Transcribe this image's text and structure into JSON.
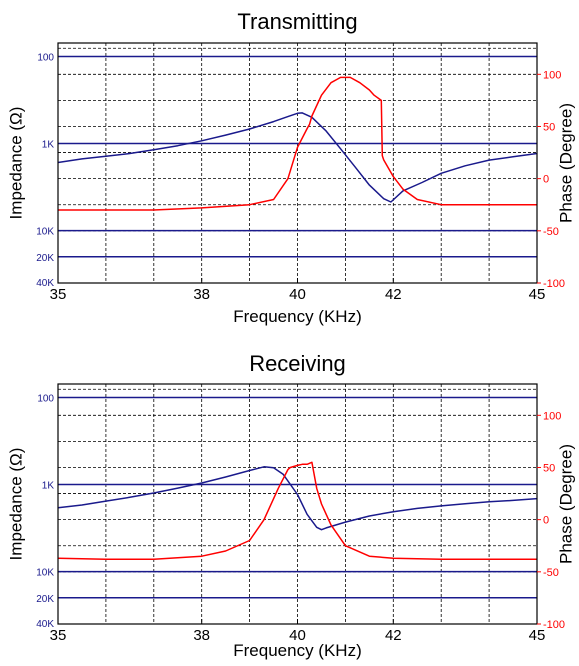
{
  "colors": {
    "impedance": "#1a1a8c",
    "phase": "#ff0000",
    "axis": "#000000",
    "grid": "#000000"
  },
  "chart_data": [
    {
      "type": "line",
      "title": "Transmitting",
      "xlabel": "Frequency (KHz)",
      "ylabel_left": "Impedance (Ω)",
      "ylabel_right": "Phase (Degree)",
      "xlim": [
        35,
        45
      ],
      "x_ticks": [
        35,
        38,
        40,
        42,
        45
      ],
      "x_tick_labels": [
        "35",
        "38",
        "40",
        "42",
        "45"
      ],
      "left_ticks": [
        {
          "label": "100",
          "value": 100
        },
        {
          "label": "1K",
          "value": 1000
        },
        {
          "label": "10K",
          "value": 10000
        },
        {
          "label": "20K",
          "value": 20000
        },
        {
          "label": "40K",
          "value": 40000
        }
      ],
      "left_axis_scale": "log-inverted",
      "ylim_left": [
        70,
        40000
      ],
      "ylim_right": [
        -100,
        130
      ],
      "right_ticks": [
        {
          "label": "100",
          "value": 100
        },
        {
          "label": "50",
          "value": 50
        },
        {
          "label": "0",
          "value": 0
        },
        {
          "label": "-50",
          "value": -50
        },
        {
          "label": "-100",
          "value": -100
        }
      ],
      "grid": true,
      "series": [
        {
          "key": "impedance",
          "axis": "left",
          "x": [
            35,
            35.5,
            36,
            36.5,
            37,
            37.5,
            38,
            38.5,
            39,
            39.5,
            39.8,
            40,
            40.1,
            40.3,
            40.6,
            40.9,
            41.2,
            41.5,
            41.8,
            41.95,
            42.2,
            42.6,
            43,
            43.5,
            44,
            44.5,
            45
          ],
          "y": [
            1650,
            1500,
            1400,
            1300,
            1180,
            1060,
            930,
            800,
            680,
            560,
            490,
            450,
            445,
            500,
            720,
            1150,
            1850,
            3000,
            4300,
            4700,
            3500,
            2800,
            2200,
            1800,
            1550,
            1420,
            1300
          ]
        },
        {
          "key": "phase",
          "axis": "right",
          "x": [
            35,
            36,
            37,
            38,
            39,
            39.5,
            39.8,
            40,
            40.2,
            40.25,
            40.3,
            40.5,
            40.7,
            40.9,
            41.1,
            41.3,
            41.5,
            41.6,
            41.75,
            41.77,
            41.8,
            41.9,
            42,
            42.2,
            42.5,
            43,
            44,
            45
          ],
          "y": [
            -30,
            -30,
            -30,
            -28,
            -25,
            -20,
            0,
            30,
            48,
            52,
            60,
            80,
            92,
            97,
            97,
            92,
            85,
            80,
            75,
            22,
            18,
            10,
            2,
            -10,
            -20,
            -25,
            -25,
            -25
          ]
        }
      ]
    },
    {
      "type": "line",
      "title": "Receiving",
      "xlabel": "Frequency (KHz)",
      "ylabel_left": "Impedance (Ω)",
      "ylabel_right": "Phase (Degree)",
      "xlim": [
        35,
        45
      ],
      "x_ticks": [
        35,
        38,
        40,
        42,
        45
      ],
      "x_tick_labels": [
        "35",
        "38",
        "40",
        "42",
        "45"
      ],
      "left_ticks": [
        {
          "label": "100",
          "value": 100
        },
        {
          "label": "1K",
          "value": 1000
        },
        {
          "label": "10K",
          "value": 10000
        },
        {
          "label": "20K",
          "value": 20000
        },
        {
          "label": "40K",
          "value": 40000
        }
      ],
      "left_axis_scale": "log-inverted",
      "ylim_left": [
        70,
        40000
      ],
      "ylim_right": [
        -100,
        130
      ],
      "right_ticks": [
        {
          "label": "100",
          "value": 100
        },
        {
          "label": "50",
          "value": 50
        },
        {
          "label": "0",
          "value": 0
        },
        {
          "label": "-50",
          "value": -50
        },
        {
          "label": "-100",
          "value": -100
        }
      ],
      "grid": true,
      "series": [
        {
          "key": "impedance",
          "axis": "left",
          "x": [
            35,
            35.5,
            36,
            36.5,
            37,
            37.5,
            38,
            38.5,
            39,
            39.3,
            39.5,
            39.7,
            40,
            40.2,
            40.4,
            40.5,
            40.6,
            41,
            41.5,
            42,
            42.5,
            43,
            43.5,
            44,
            44.5,
            45
          ],
          "y": [
            1850,
            1720,
            1550,
            1400,
            1250,
            1100,
            960,
            820,
            690,
            625,
            640,
            760,
            1300,
            2200,
            3100,
            3300,
            3150,
            2700,
            2300,
            2050,
            1880,
            1760,
            1660,
            1580,
            1520,
            1450
          ]
        },
        {
          "key": "phase",
          "axis": "right",
          "x": [
            35,
            36,
            37,
            38,
            38.5,
            39,
            39.3,
            39.6,
            39.8,
            39.85,
            40,
            40.1,
            40.2,
            40.3,
            40.4,
            40.5,
            40.7,
            41,
            41.5,
            42,
            43,
            44,
            45
          ],
          "y": [
            -37,
            -38,
            -38,
            -35,
            -30,
            -20,
            0,
            30,
            48,
            50,
            52,
            53,
            53,
            55,
            30,
            15,
            -5,
            -25,
            -35,
            -37,
            -38,
            -38,
            -38
          ]
        }
      ]
    }
  ]
}
